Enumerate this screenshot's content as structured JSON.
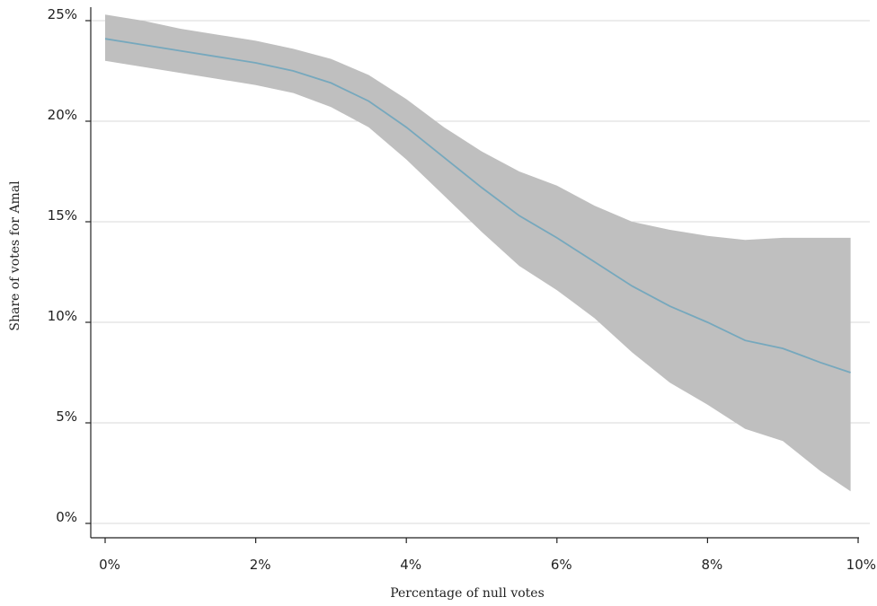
{
  "chart_data": {
    "type": "area",
    "title": "",
    "xlabel": "Percentage of null votes",
    "ylabel": "Share of votes for Amal",
    "xlim": [
      0,
      10
    ],
    "ylim": [
      0,
      25
    ],
    "x_ticks": [
      0,
      2,
      4,
      6,
      8,
      10
    ],
    "y_ticks": [
      0,
      5,
      10,
      15,
      20,
      25
    ],
    "x_tick_labels": [
      "0%",
      "2%",
      "4%",
      "6%",
      "8%",
      "10%"
    ],
    "y_tick_labels": [
      "0%",
      "5%",
      "10%",
      "15%",
      "20%",
      "25%"
    ],
    "grid": "horizontal",
    "legend": "none",
    "colors": {
      "line": "#76a8bd",
      "band": "#bfbfbf",
      "grid": "#d9d9d9",
      "axis": "#222222"
    },
    "series": [
      {
        "x": [
          0,
          0.5,
          1,
          1.5,
          2,
          2.5,
          3,
          3.5,
          4,
          4.5,
          5,
          5.5,
          6,
          6.5,
          7,
          7.5,
          8,
          8.5,
          9,
          9.5,
          9.9
        ],
        "y": [
          24.1,
          23.8,
          23.5,
          23.2,
          22.9,
          22.5,
          21.9,
          21.0,
          19.7,
          18.2,
          16.7,
          15.3,
          14.2,
          13.0,
          11.8,
          10.8,
          10.0,
          9.1,
          8.7,
          8.0,
          7.5
        ],
        "lower": [
          23.0,
          22.7,
          22.4,
          22.1,
          21.8,
          21.4,
          20.7,
          19.7,
          18.1,
          16.3,
          14.5,
          12.8,
          11.6,
          10.2,
          8.5,
          7.0,
          5.9,
          4.7,
          4.1,
          2.6,
          1.6
        ],
        "upper": [
          25.3,
          25.0,
          24.6,
          24.3,
          24.0,
          23.6,
          23.1,
          22.3,
          21.1,
          19.7,
          18.5,
          17.5,
          16.8,
          15.8,
          15.0,
          14.6,
          14.3,
          14.1,
          14.2,
          14.2,
          14.2
        ]
      }
    ]
  }
}
